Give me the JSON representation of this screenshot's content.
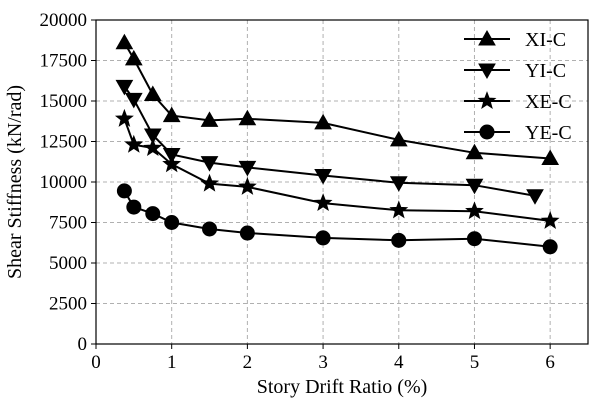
{
  "chart_data": {
    "type": "line",
    "title": "",
    "xlabel": "Story Drift Ratio (%)",
    "ylabel": "Shear Stiffness (kN/rad)",
    "xlim": [
      0,
      6.5
    ],
    "ylim": [
      0,
      20000
    ],
    "xticks": [
      0,
      1,
      2,
      3,
      4,
      5,
      6
    ],
    "yticks": [
      0,
      2500,
      5000,
      7500,
      10000,
      12500,
      15000,
      17500,
      20000
    ],
    "grid": true,
    "legend_position": "top-right",
    "series": [
      {
        "name": "XI-C",
        "marker": "triangle-up",
        "x": [
          0.375,
          0.5,
          0.75,
          1,
          1.5,
          2,
          3,
          4,
          5,
          6
        ],
        "y": [
          18600,
          17600,
          15400,
          14100,
          13800,
          13900,
          13650,
          12600,
          11800,
          11450
        ]
      },
      {
        "name": "YI-C",
        "marker": "triangle-down",
        "x": [
          0.375,
          0.5,
          0.75,
          1,
          1.5,
          2,
          3,
          4,
          5,
          5.8
        ],
        "y": [
          15900,
          15100,
          12900,
          11700,
          11200,
          10900,
          10400,
          9950,
          9800,
          9150
        ]
      },
      {
        "name": "XE-C",
        "marker": "star",
        "x": [
          0.375,
          0.5,
          0.75,
          1,
          1.5,
          2,
          3,
          4,
          5,
          6
        ],
        "y": [
          13900,
          12300,
          12100,
          11100,
          9900,
          9700,
          8700,
          8250,
          8200,
          7600
        ]
      },
      {
        "name": "YE-C",
        "marker": "circle",
        "x": [
          0.375,
          0.5,
          0.75,
          1,
          1.5,
          2,
          3,
          4,
          5,
          6
        ],
        "y": [
          9450,
          8450,
          8050,
          7500,
          7100,
          6850,
          6550,
          6400,
          6500,
          6000
        ]
      }
    ]
  }
}
